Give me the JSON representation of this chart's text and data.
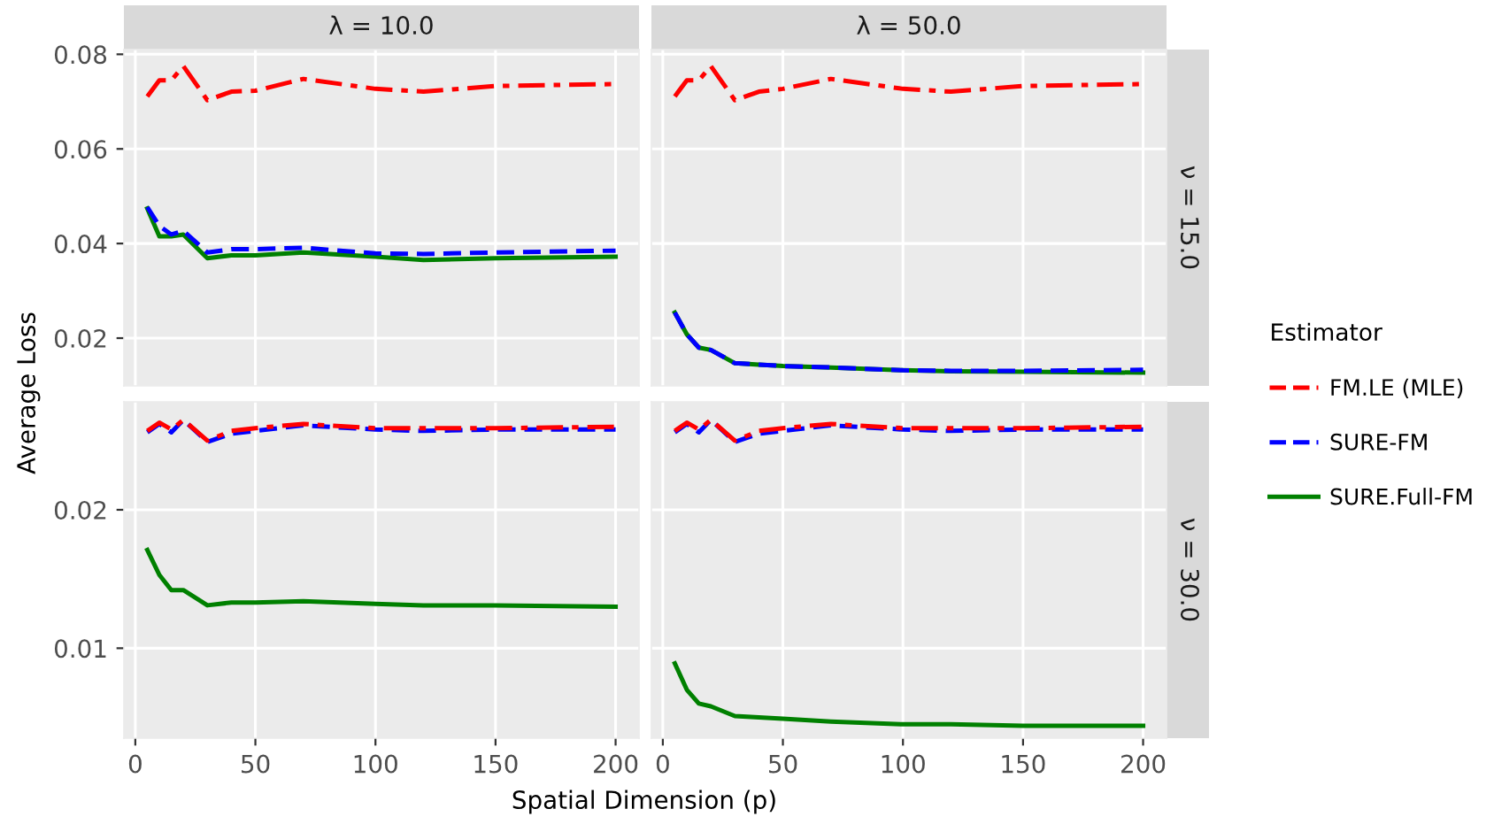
{
  "chart_data": [
    {
      "type": "line",
      "title": "λ = 10.0",
      "ylabel": "Average Loss",
      "legend": "right",
      "legend_title": "Estimator",
      "x": [
        5,
        10,
        15,
        20,
        30,
        40,
        50,
        70,
        100,
        120,
        150,
        200
      ],
      "xlim": [
        -4.75,
        209.75
      ],
      "xticks": [
        0,
        50,
        100,
        150,
        200
      ],
      "ylim": [
        0.0099,
        0.081
      ],
      "yticks": [
        0.02,
        0.04,
        0.06,
        0.08
      ],
      "grid": true,
      "tick_labels": "y",
      "series": [
        {
          "name": "FM.LE (MLE)",
          "color": "#ff0000",
          "line_style": "dashdot",
          "values": [
            0.0711,
            0.0745,
            0.0745,
            0.0775,
            0.0703,
            0.0721,
            0.0723,
            0.0748,
            0.0727,
            0.0721,
            0.0733,
            0.0737
          ]
        },
        {
          "name": "SURE-FM",
          "color": "#0000ff",
          "line_style": "dashed",
          "values": [
            0.0477,
            0.0437,
            0.0419,
            0.0427,
            0.0381,
            0.0388,
            0.0388,
            0.0391,
            0.0379,
            0.0378,
            0.0381,
            0.0385
          ]
        },
        {
          "name": "SURE.Full-FM",
          "color": "#008000",
          "line_style": "solid",
          "values": [
            0.0474,
            0.0415,
            0.0415,
            0.0419,
            0.0369,
            0.0375,
            0.0375,
            0.0381,
            0.0372,
            0.0365,
            0.0369,
            0.0372
          ]
        }
      ]
    },
    {
      "type": "line",
      "title": "λ = 50.0",
      "annotations": [
        "ν = 15.0"
      ],
      "x": [
        5,
        10,
        15,
        20,
        30,
        40,
        50,
        70,
        100,
        120,
        150,
        200
      ],
      "xlim": [
        -4.75,
        209.75
      ],
      "xticks": [
        0,
        50,
        100,
        150,
        200
      ],
      "ylim": [
        0.0099,
        0.081
      ],
      "yticks": [
        0.02,
        0.04,
        0.06,
        0.08
      ],
      "grid": true,
      "tick_labels": false,
      "series": [
        {
          "name": "FM.LE (MLE)",
          "color": "#ff0000",
          "line_style": "dashdot",
          "values": [
            0.0711,
            0.0745,
            0.0745,
            0.0775,
            0.0703,
            0.0721,
            0.0727,
            0.0748,
            0.0727,
            0.0721,
            0.0733,
            0.0737
          ]
        },
        {
          "name": "SURE-FM",
          "color": "#0000ff",
          "line_style": "dashed",
          "values": [
            0.0254,
            0.0208,
            0.018,
            0.0175,
            0.0147,
            0.0144,
            0.0141,
            0.0138,
            0.0132,
            0.0131,
            0.0131,
            0.0133
          ]
        },
        {
          "name": "SURE.Full-FM",
          "color": "#008000",
          "line_style": "solid",
          "values": [
            0.0254,
            0.0208,
            0.018,
            0.0175,
            0.0147,
            0.0144,
            0.0141,
            0.0138,
            0.0132,
            0.013,
            0.0129,
            0.0127
          ]
        }
      ]
    },
    {
      "type": "line",
      "xlabel": "Spatial Dimension (p)",
      "x": [
        5,
        10,
        15,
        20,
        30,
        40,
        50,
        70,
        100,
        120,
        150,
        200
      ],
      "xlim": [
        -4.75,
        209.75
      ],
      "xticks": [
        0,
        50,
        100,
        150,
        200
      ],
      "ylim": [
        0.0035,
        0.0278
      ],
      "yticks": [
        0.01,
        0.02
      ],
      "grid": true,
      "series": [
        {
          "name": "FM.LE (MLE)",
          "color": "#ff0000",
          "line_style": "dashdot",
          "values": [
            0.0257,
            0.0263,
            0.0258,
            0.0265,
            0.025,
            0.0257,
            0.0259,
            0.0262,
            0.0259,
            0.0259,
            0.0259,
            0.026
          ]
        },
        {
          "name": "SURE-FM",
          "color": "#0000ff",
          "line_style": "dashed",
          "values": [
            0.0256,
            0.0262,
            0.0256,
            0.0265,
            0.0249,
            0.0255,
            0.0257,
            0.0261,
            0.0258,
            0.0257,
            0.0258,
            0.0258
          ]
        },
        {
          "name": "SURE.Full-FM",
          "color": "#008000",
          "line_style": "solid",
          "values": [
            0.0171,
            0.0153,
            0.0142,
            0.0142,
            0.0131,
            0.0133,
            0.0133,
            0.0134,
            0.0132,
            0.0131,
            0.0131,
            0.013
          ]
        }
      ]
    },
    {
      "type": "line",
      "annotations": [
        "ν = 30.0"
      ],
      "x": [
        5,
        10,
        15,
        20,
        30,
        40,
        50,
        70,
        100,
        120,
        150,
        200
      ],
      "xlim": [
        -4.75,
        209.75
      ],
      "xticks": [
        0,
        50,
        100,
        150,
        200
      ],
      "ylim": [
        0.0035,
        0.0278
      ],
      "yticks": [
        0.01,
        0.02
      ],
      "grid": true,
      "tick_labels": "x",
      "series": [
        {
          "name": "FM.LE (MLE)",
          "color": "#ff0000",
          "line_style": "dashdot",
          "values": [
            0.0257,
            0.0263,
            0.0258,
            0.0265,
            0.025,
            0.0257,
            0.0259,
            0.0262,
            0.0259,
            0.0259,
            0.0259,
            0.026
          ]
        },
        {
          "name": "SURE-FM",
          "color": "#0000ff",
          "line_style": "dashed",
          "values": [
            0.0256,
            0.0262,
            0.0256,
            0.0265,
            0.0249,
            0.0255,
            0.0257,
            0.0261,
            0.0258,
            0.0257,
            0.0258,
            0.0258
          ]
        },
        {
          "name": "SURE.Full-FM",
          "color": "#008000",
          "line_style": "solid",
          "values": [
            0.0089,
            0.007,
            0.006,
            0.0058,
            0.0051,
            0.005,
            0.0049,
            0.0047,
            0.0045,
            0.0045,
            0.0044,
            0.0044
          ]
        }
      ]
    }
  ]
}
